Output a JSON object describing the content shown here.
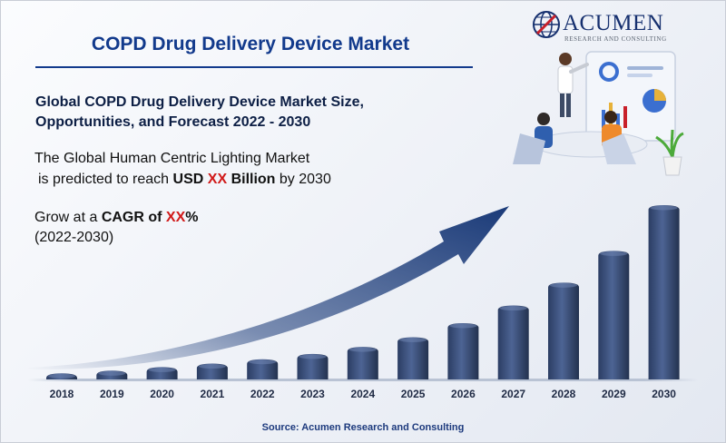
{
  "header": {
    "title": "COPD Drug Delivery Device Market",
    "subtitle_line1": "Global COPD Drug Delivery Device Market Size,",
    "subtitle_line2": "Opportunities, and Forecast 2022 - 2030"
  },
  "description": {
    "line1": "The Global Human Centric Lighting Market",
    "line2_prefix": "is predicted to reach",
    "usd": "USD",
    "value": "XX",
    "unit": "Billion",
    "line2_suffix": "by 2030"
  },
  "growth": {
    "prefix": "Grow at a",
    "cagr_label": "CAGR of",
    "value": "XX",
    "percent": "%",
    "period": "(2022-2030)"
  },
  "logo": {
    "name": "ACUMEN",
    "tagline": "RESEARCH AND CONSULTING"
  },
  "source": "Source: Acumen Research and Consulting",
  "colors": {
    "title": "#123a8c",
    "highlight": "#d11a1a",
    "bar": "#3a4f7a",
    "arrow": "#1a3a78"
  },
  "chart_data": {
    "type": "bar",
    "categories": [
      "2018",
      "2019",
      "2020",
      "2021",
      "2022",
      "2023",
      "2024",
      "2025",
      "2026",
      "2027",
      "2028",
      "2029",
      "2030"
    ],
    "values": [
      7,
      10,
      14,
      18,
      23,
      29,
      37,
      48,
      64,
      84,
      110,
      146,
      198
    ],
    "value_note": "relative heights only; no y-axis or values are printed",
    "trend_arrow": true,
    "grid": false,
    "legend": "none"
  }
}
